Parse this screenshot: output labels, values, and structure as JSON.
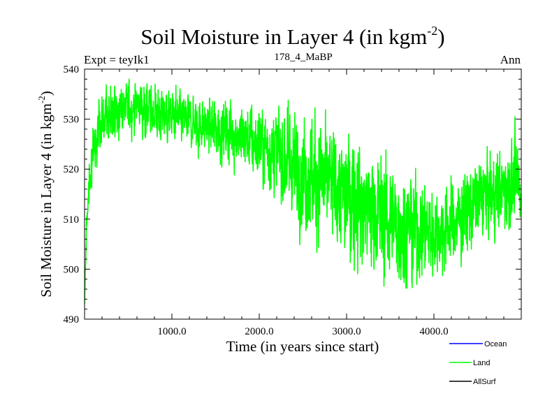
{
  "chart_data": {
    "type": "line",
    "title": "Soil Moisture in Layer 4 (in kgm",
    "title_superscript": "-2",
    "title_close": ")",
    "subtitle_left": "Expt = teyIk1",
    "subtitle_center": "178_4_MaBP",
    "subtitle_right": "Ann",
    "xlabel": "Time (in years since start)",
    "ylabel": "Soil Moisture in Layer 4 (in kgm",
    "ylabel_superscript": "-2",
    "ylabel_close": ")",
    "xlim": [
      0,
      5000
    ],
    "ylim": [
      490,
      540
    ],
    "x_ticks": [
      {
        "value": 1000,
        "label": "1000.0"
      },
      {
        "value": 2000,
        "label": "2000.0"
      },
      {
        "value": 3000,
        "label": "3000.0"
      },
      {
        "value": 4000,
        "label": "4000.0"
      }
    ],
    "y_ticks": [
      {
        "value": 490,
        "label": "490"
      },
      {
        "value": 500,
        "label": "500"
      },
      {
        "value": 510,
        "label": "510"
      },
      {
        "value": 520,
        "label": "520"
      },
      {
        "value": 530,
        "label": "530"
      },
      {
        "value": 540,
        "label": "540"
      }
    ],
    "x_minor_step": 200,
    "y_minor_step": 2,
    "legend_position": "bottom-right",
    "series": [
      {
        "name": "Ocean",
        "color": "#0000ff",
        "x": [],
        "values": []
      },
      {
        "name": "Land",
        "color": "#00ff00",
        "x": [
          0,
          20,
          40,
          60,
          80,
          100,
          150,
          200,
          300,
          400,
          500,
          600,
          700,
          800,
          900,
          1000,
          1100,
          1200,
          1300,
          1400,
          1500,
          1600,
          1700,
          1800,
          1900,
          2000,
          2100,
          2200,
          2300,
          2400,
          2500,
          2600,
          2700,
          2800,
          2900,
          3000,
          3100,
          3200,
          3300,
          3400,
          3500,
          3600,
          3700,
          3800,
          3900,
          4000,
          4100,
          4200,
          4300,
          4400,
          4500,
          4600,
          4700,
          4800,
          4900,
          4950
        ],
        "values": [
          493,
          507,
          515,
          518,
          521,
          524,
          527,
          529,
          531,
          532,
          532,
          533,
          532,
          531.5,
          531,
          530.5,
          530,
          529.5,
          529,
          528.5,
          528,
          527.5,
          527,
          526.5,
          525.5,
          525,
          524.5,
          523.5,
          522,
          521,
          520,
          519,
          518,
          517,
          516,
          515,
          514,
          513,
          511.5,
          510.5,
          509.5,
          508.5,
          508,
          507.5,
          507.5,
          507.5,
          508,
          509,
          510,
          512,
          514,
          515,
          515,
          516,
          517,
          518
        ],
        "amplitude": [
          1,
          4,
          6,
          7,
          8,
          9,
          10,
          10,
          10,
          9,
          9,
          9,
          9,
          9,
          9,
          9,
          9,
          9,
          9,
          9,
          10,
          10,
          10,
          11,
          12,
          13,
          14,
          15,
          17,
          18,
          19,
          20,
          20,
          20,
          20,
          20,
          20,
          20,
          20,
          20,
          20,
          19,
          18,
          17,
          16,
          15,
          14,
          14,
          14,
          14,
          13,
          13,
          13,
          13,
          14,
          14
        ]
      },
      {
        "name": "AllSurf",
        "color": "#000000",
        "x": [],
        "values": []
      }
    ]
  }
}
